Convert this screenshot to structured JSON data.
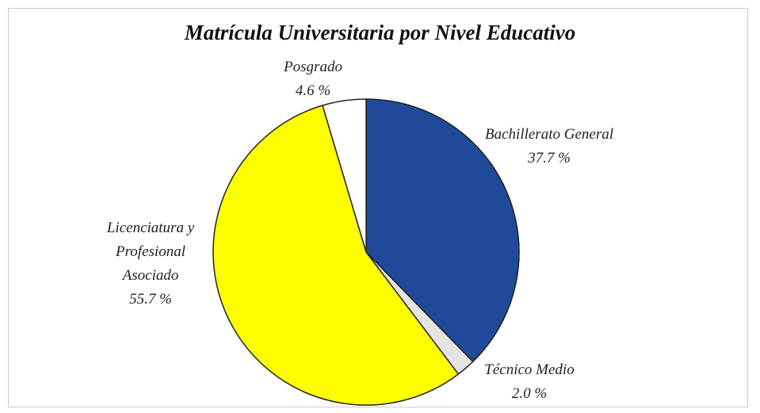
{
  "chart_data": {
    "type": "pie",
    "title": "Matrícula Universitaria por Nivel Educativo",
    "categories": [
      "Bachillerato General",
      "Técnico Medio",
      "Licenciatura y Profesional Asociado",
      "Posgrado"
    ],
    "values": [
      37.7,
      2.0,
      55.7,
      4.6
    ],
    "value_labels": [
      "37.7 %",
      "2.0 %",
      "55.7 %",
      "4.6 %"
    ],
    "colors": [
      "#1f4a99",
      "#e4e4e4",
      "#ffff00",
      "#ffffff"
    ]
  }
}
